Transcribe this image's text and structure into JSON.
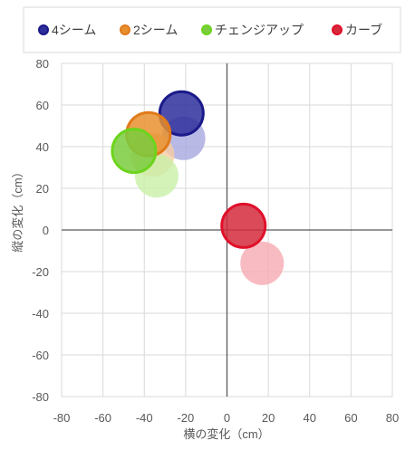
{
  "chart_data": {
    "type": "scatter",
    "xlabel": "横の変化（cm）",
    "ylabel": "縦の変化（cm）",
    "xlim": [
      -80,
      80
    ],
    "ylim": [
      -80,
      80
    ],
    "x_ticks": [
      "-80",
      "-60",
      "-40",
      "-20",
      "0",
      "20",
      "40",
      "60",
      "80"
    ],
    "y_ticks": [
      "80",
      "60",
      "40",
      "20",
      "0",
      "-20",
      "-40",
      "-60",
      "-80"
    ],
    "grid": true,
    "legend_position": "top",
    "series": [
      {
        "name": "4シーム",
        "color": "#2e2e9c",
        "edge": "#1a1a8a",
        "ghost_color": "#a8a8e0",
        "points": [
          {
            "x": -22,
            "y": 56,
            "ghost": false
          },
          {
            "x": -21,
            "y": 44,
            "ghost": true
          }
        ]
      },
      {
        "name": "2シーム",
        "color": "#e8902e",
        "edge": "#e07a1a",
        "ghost_color": "#f6cda2",
        "points": [
          {
            "x": -38,
            "y": 46,
            "ghost": false
          },
          {
            "x": -36,
            "y": 36,
            "ghost": true
          }
        ]
      },
      {
        "name": "チェンジアップ",
        "color": "#7acd3e",
        "edge": "#6cd41c",
        "ghost_color": "#c9f0a8",
        "points": [
          {
            "x": -45,
            "y": 38,
            "ghost": false
          },
          {
            "x": -34,
            "y": 26,
            "ghost": true
          }
        ]
      },
      {
        "name": "カーブ",
        "color": "#d42a3c",
        "edge": "#e0102a",
        "ghost_color": "#f6aab2",
        "points": [
          {
            "x": 8,
            "y": 2,
            "ghost": false
          },
          {
            "x": 17,
            "y": -16,
            "ghost": true
          }
        ]
      }
    ]
  }
}
